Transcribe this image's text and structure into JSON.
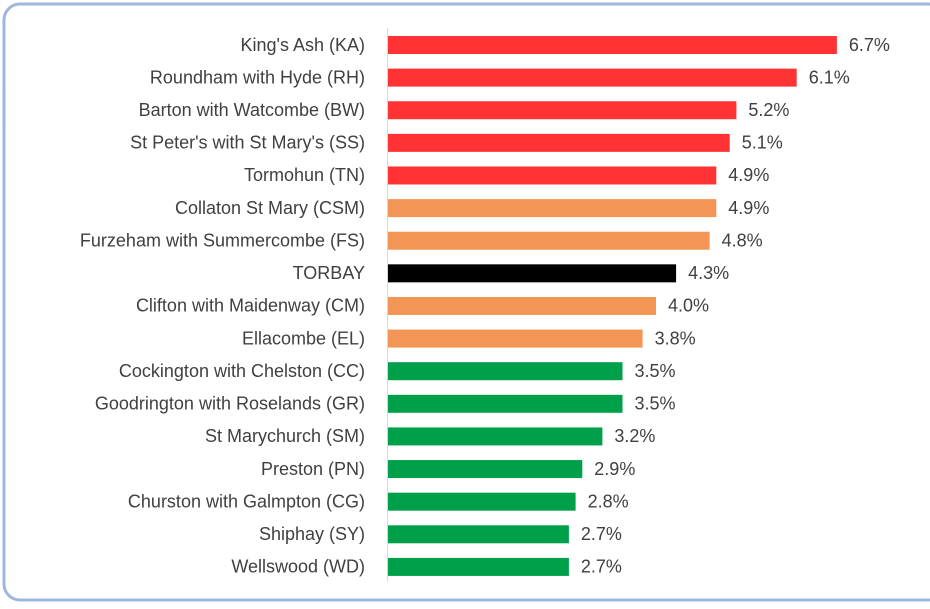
{
  "chart_data": {
    "type": "barh",
    "categories": [
      "King's Ash (KA)",
      "Roundham with Hyde (RH)",
      "Barton with Watcombe (BW)",
      "St Peter's with St Mary's (SS)",
      "Tormohun (TN)",
      "Collaton St Mary (CSM)",
      "Furzeham with Summercombe (FS)",
      "TORBAY",
      "Clifton with Maidenway (CM)",
      "Ellacombe (EL)",
      "Cockington with Chelston (CC)",
      "Goodrington with Roselands (GR)",
      "St Marychurch (SM)",
      "Preston (PN)",
      "Churston with Galmpton (CG)",
      "Shiphay (SY)",
      "Wellswood (WD)"
    ],
    "values": [
      6.7,
      6.1,
      5.2,
      5.1,
      4.9,
      4.9,
      4.8,
      4.3,
      4.0,
      3.8,
      3.5,
      3.5,
      3.2,
      2.9,
      2.8,
      2.7,
      2.7
    ],
    "value_labels": [
      "6.7%",
      "6.1%",
      "5.2%",
      "5.1%",
      "4.9%",
      "4.9%",
      "4.8%",
      "4.3%",
      "4.0%",
      "3.8%",
      "3.5%",
      "3.5%",
      "3.2%",
      "2.9%",
      "2.8%",
      "2.7%",
      "2.7%"
    ],
    "colors": [
      "#ff3333",
      "#ff3333",
      "#ff3333",
      "#ff3333",
      "#ff3333",
      "#f39655",
      "#f39655",
      "#000000",
      "#f39655",
      "#f39655",
      "#00a04b",
      "#00a04b",
      "#00a04b",
      "#00a04b",
      "#00a04b",
      "#00a04b",
      "#00a04b"
    ],
    "xlim": [
      0,
      7
    ]
  }
}
